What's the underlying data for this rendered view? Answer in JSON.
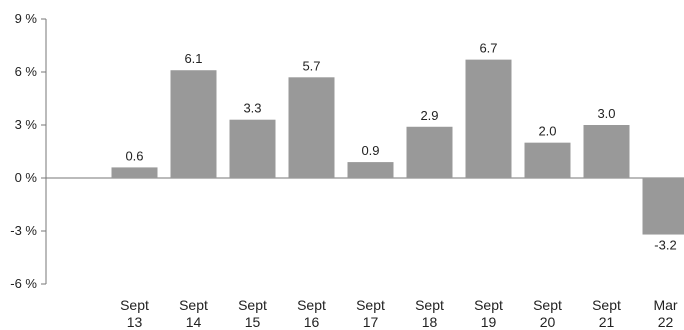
{
  "chart_data": {
    "type": "bar",
    "categories": [
      [
        "",
        ""
      ],
      [
        "Sept",
        "13"
      ],
      [
        "Sept",
        "14"
      ],
      [
        "Sept",
        "15"
      ],
      [
        "Sept",
        "16"
      ],
      [
        "Sept",
        "17"
      ],
      [
        "Sept",
        "18"
      ],
      [
        "Sept",
        "19"
      ],
      [
        "Sept",
        "20"
      ],
      [
        "Sept",
        "21"
      ],
      [
        "Mar",
        "22"
      ]
    ],
    "values": [
      null,
      0.6,
      6.1,
      3.3,
      5.7,
      0.9,
      2.9,
      6.7,
      2.0,
      3.0,
      -3.2
    ],
    "data_labels": [
      "",
      "0.6",
      "6.1",
      "3.3",
      "5.7",
      "0.9",
      "2.9",
      "6.7",
      "2.0",
      "3.0",
      "-3.2"
    ],
    "ylim": [
      -6,
      9
    ],
    "yticks": [
      9,
      6,
      3,
      0,
      -3,
      -6
    ],
    "ytick_labels": [
      "9 %",
      "6 %",
      "3 %",
      "0 %",
      "-3 %",
      "-6 %"
    ],
    "grid": false,
    "bar_color": "#999999",
    "axis_color": "#777777",
    "title": "",
    "xlabel": "",
    "ylabel": ""
  }
}
